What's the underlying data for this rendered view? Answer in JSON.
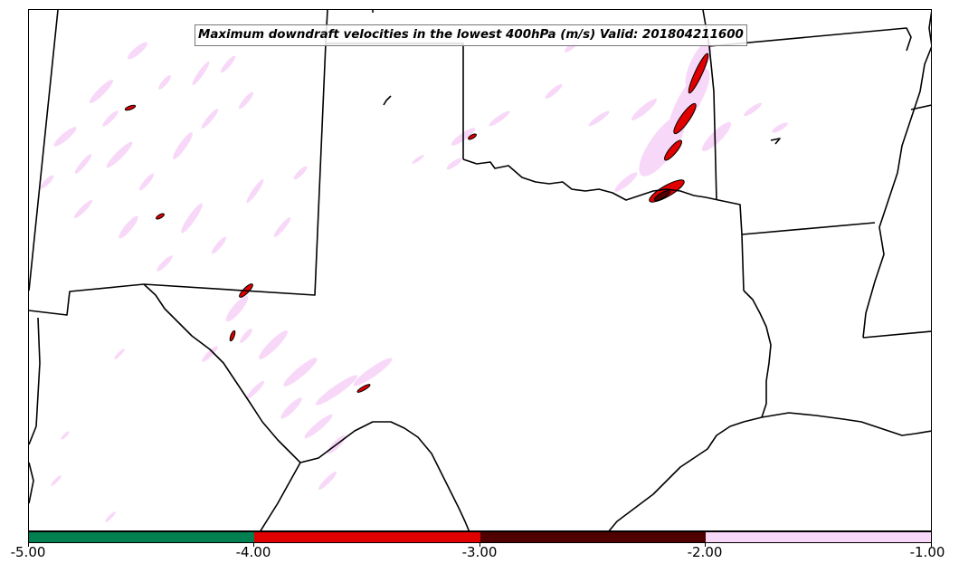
{
  "map": {
    "title": "Maximum downdraft velocities in the lowest 400hPa (m/s) Valid: 201804211600",
    "colors": {
      "light_pink": "#f8d8f8",
      "red": "#e00000",
      "dark_red": "#500000",
      "green": "#008050",
      "border": "#000000"
    }
  },
  "colorbar": {
    "segments": [
      {
        "color": "#008050"
      },
      {
        "color": "#e00000"
      },
      {
        "color": "#500000"
      },
      {
        "color": "#f8d8f8"
      }
    ],
    "labels": [
      "-5.00",
      "-4.00",
      "-3.00",
      "-2.00",
      "-1.00"
    ]
  }
}
